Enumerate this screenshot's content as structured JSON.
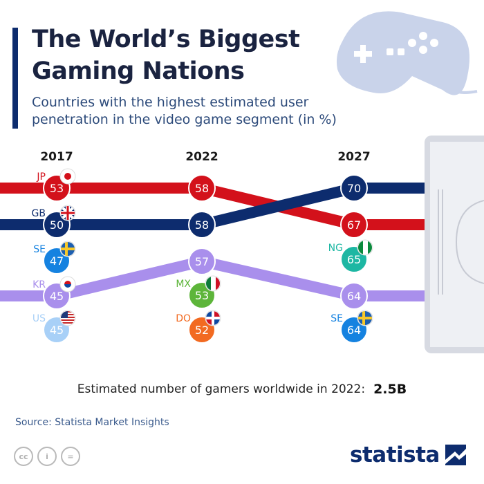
{
  "header": {
    "title": "The World’s Biggest Gaming Nations",
    "subtitle": "Countries with the highest estimated user penetration in the video game segment (in %)"
  },
  "chart_data": {
    "type": "line",
    "categories": [
      "2017",
      "2022",
      "2027"
    ],
    "ylabel": "",
    "series": [
      {
        "name": "JP",
        "color": "#d3111b",
        "values": [
          53,
          58,
          67
        ]
      },
      {
        "name": "GB",
        "color": "#0d2c6e",
        "values": [
          50,
          58,
          70
        ]
      },
      {
        "name": "KR",
        "color": "#a98fec",
        "values": [
          45,
          57,
          64
        ]
      }
    ],
    "other_countries": [
      {
        "code": "SE",
        "year": "2017",
        "value": 47,
        "color": "#1582e0"
      },
      {
        "code": "US",
        "year": "2017",
        "value": 45,
        "color": "#a8d0f7"
      },
      {
        "code": "MX",
        "year": "2022",
        "value": 53,
        "color": "#5db53a"
      },
      {
        "code": "DO",
        "year": "2022",
        "value": 52,
        "color": "#f26a21"
      },
      {
        "code": "NG",
        "year": "2027",
        "value": 65,
        "color": "#1db7a3"
      },
      {
        "code": "SE",
        "year": "2027",
        "value": 64,
        "color": "#1582e0"
      }
    ]
  },
  "total": {
    "label": "Estimated number of gamers worldwide in 2022:",
    "value": "2.5B"
  },
  "source": "Source: Statista Market Insights",
  "brand": "statista",
  "license_icons": [
    "cc-icon",
    "attribution-icon",
    "no-derivatives-icon"
  ]
}
